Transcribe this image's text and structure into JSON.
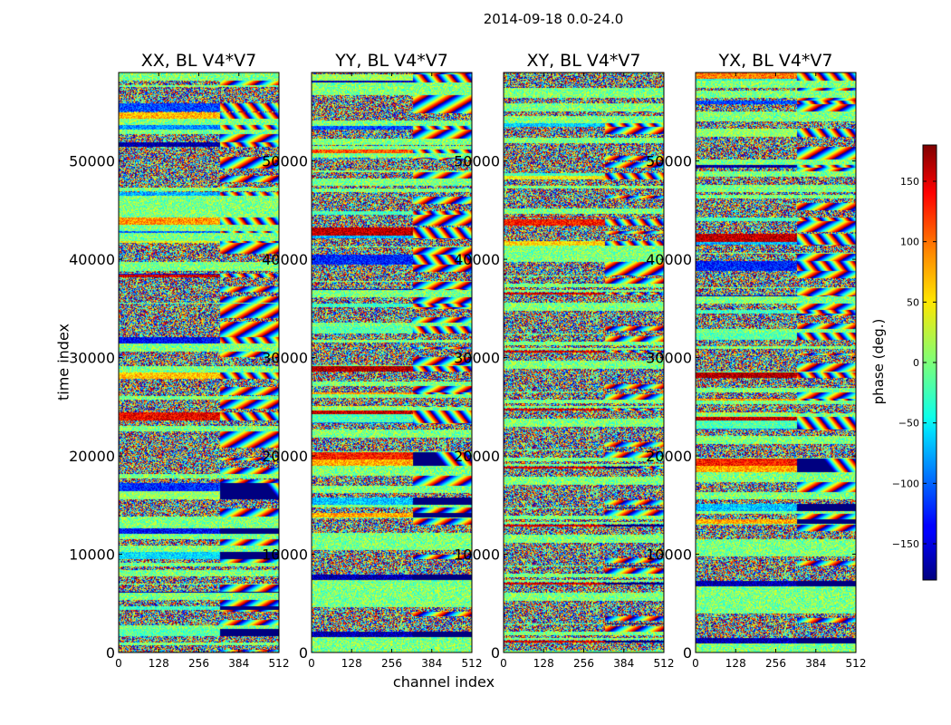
{
  "suptitle": "2014-09-18 0.0-24.0",
  "chart_data": {
    "type": "heatmap",
    "panels": [
      {
        "title": "XX, BL V4*V7"
      },
      {
        "title": "YY, BL V4*V7"
      },
      {
        "title": "XY, BL V4*V7"
      },
      {
        "title": "YX, BL V4*V7"
      }
    ],
    "xlabel": "channel index",
    "ylabel": "time index",
    "xlim": [
      0,
      512
    ],
    "ylim": [
      0,
      59000
    ],
    "xticks": [
      0,
      128,
      256,
      384,
      512
    ],
    "yticks": [
      0,
      10000,
      20000,
      30000,
      40000,
      50000
    ],
    "xtick_labels": [
      "0",
      "128",
      "256",
      "384",
      "512"
    ],
    "ytick_labels": [
      "0",
      "10000",
      "20000",
      "30000",
      "40000",
      "50000"
    ],
    "colorbar": {
      "label": "phase (deg.)",
      "range": [
        -180,
        180
      ],
      "ticks": [
        150,
        100,
        50,
        0,
        -50,
        -100,
        -150
      ],
      "tick_labels": [
        "150",
        "100",
        "50",
        "0",
        "−50",
        "−100",
        "−150"
      ],
      "colormap": "jet"
    }
  }
}
